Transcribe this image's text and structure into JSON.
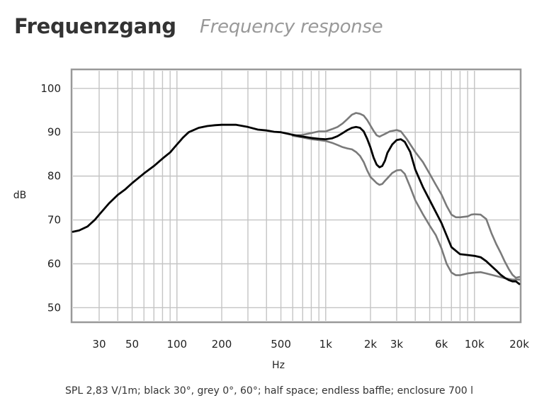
{
  "title": "Frequenzgang",
  "subtitle": "Frequency response",
  "caption": "SPL 2,83 V/1m; black 30°, grey 0°, 60°; half space; endless baffle; enclosure 700 l",
  "colors": {
    "black_curve": "#000000",
    "grey_curve": "#7a7a7a",
    "grid": "#c4c4c4",
    "frame": "#999999"
  },
  "chart_data": {
    "type": "line",
    "title": "Frequenzgang",
    "subtitle": "Frequency response",
    "xlabel": "Hz",
    "ylabel": "dB",
    "xscale": "log",
    "xlim": [
      20,
      20000
    ],
    "ylim": [
      47,
      104
    ],
    "grid": true,
    "ticks_x": [
      {
        "value": 30,
        "label": "30"
      },
      {
        "value": 50,
        "label": "50"
      },
      {
        "value": 100,
        "label": "100"
      },
      {
        "value": 200,
        "label": "200"
      },
      {
        "value": 500,
        "label": "500"
      },
      {
        "value": 1000,
        "label": "1k"
      },
      {
        "value": 2000,
        "label": "2k"
      },
      {
        "value": 3000,
        "label": "3k"
      },
      {
        "value": 6000,
        "label": "6k"
      },
      {
        "value": 10000,
        "label": "10k"
      },
      {
        "value": 20000,
        "label": "20k"
      }
    ],
    "ticks_y": [
      {
        "value": 50,
        "label": "50"
      },
      {
        "value": 60,
        "label": "60"
      },
      {
        "value": 70,
        "label": "70"
      },
      {
        "value": 80,
        "label": "80"
      },
      {
        "value": 90,
        "label": "90"
      },
      {
        "value": 100,
        "label": "100"
      }
    ],
    "series": [
      {
        "color": "#000000",
        "points": [
          [
            20,
            67.3
          ],
          [
            22,
            67.6
          ],
          [
            25,
            68.5
          ],
          [
            28,
            70
          ],
          [
            30,
            71.2
          ],
          [
            35,
            73.8
          ],
          [
            40,
            75.7
          ],
          [
            45,
            77
          ],
          [
            50,
            78.4
          ],
          [
            60,
            80.6
          ],
          [
            70,
            82.3
          ],
          [
            80,
            84
          ],
          [
            90,
            85.4
          ],
          [
            100,
            87.2
          ],
          [
            110,
            88.8
          ],
          [
            120,
            90
          ],
          [
            140,
            91
          ],
          [
            160,
            91.4
          ],
          [
            180,
            91.6
          ],
          [
            200,
            91.7
          ],
          [
            250,
            91.7
          ],
          [
            300,
            91.2
          ],
          [
            350,
            90.6
          ],
          [
            400,
            90.4
          ],
          [
            450,
            90.1
          ],
          [
            500,
            90
          ],
          [
            600,
            89.4
          ],
          [
            700,
            89
          ],
          [
            800,
            88.7
          ],
          [
            900,
            88.5
          ],
          [
            1000,
            88.4
          ],
          [
            1100,
            88.6
          ],
          [
            1200,
            89.1
          ],
          [
            1300,
            89.8
          ],
          [
            1400,
            90.5
          ],
          [
            1500,
            91
          ],
          [
            1600,
            91.2
          ],
          [
            1700,
            91
          ],
          [
            1800,
            90.2
          ],
          [
            1900,
            88.5
          ],
          [
            2000,
            86.5
          ],
          [
            2100,
            84.2
          ],
          [
            2200,
            82.6
          ],
          [
            2300,
            82
          ],
          [
            2400,
            82.3
          ],
          [
            2500,
            83.5
          ],
          [
            2600,
            85.3
          ],
          [
            2800,
            87.2
          ],
          [
            3000,
            88.2
          ],
          [
            3200,
            88.4
          ],
          [
            3400,
            87.8
          ],
          [
            3700,
            85.5
          ],
          [
            4000,
            81.5
          ],
          [
            4500,
            77.5
          ],
          [
            5000,
            74.5
          ],
          [
            6000,
            69.3
          ],
          [
            7000,
            63.8
          ],
          [
            8000,
            62.2
          ],
          [
            9000,
            62
          ],
          [
            10000,
            61.8
          ],
          [
            11000,
            61.5
          ],
          [
            12000,
            60.6
          ],
          [
            13000,
            59.5
          ],
          [
            14000,
            58.5
          ],
          [
            15000,
            57.5
          ],
          [
            16000,
            56.8
          ],
          [
            17000,
            56.3
          ],
          [
            18000,
            56
          ],
          [
            19000,
            56
          ],
          [
            20000,
            55.4
          ]
        ]
      },
      {
        "color": "#7a7a7a",
        "points": [
          [
            600,
            89.2
          ],
          [
            700,
            89.4
          ],
          [
            800,
            89.8
          ],
          [
            900,
            90.2
          ],
          [
            1000,
            90.2
          ],
          [
            1100,
            90.7
          ],
          [
            1200,
            91.2
          ],
          [
            1300,
            92
          ],
          [
            1400,
            93
          ],
          [
            1500,
            94
          ],
          [
            1600,
            94.4
          ],
          [
            1700,
            94.2
          ],
          [
            1800,
            93.8
          ],
          [
            1900,
            92.8
          ],
          [
            2000,
            91.5
          ],
          [
            2100,
            90.3
          ],
          [
            2200,
            89.3
          ],
          [
            2300,
            89
          ],
          [
            2400,
            89.3
          ],
          [
            2500,
            89.6
          ],
          [
            2700,
            90.2
          ],
          [
            3000,
            90.5
          ],
          [
            3200,
            90.2
          ],
          [
            3500,
            88.5
          ],
          [
            4000,
            85.5
          ],
          [
            4500,
            83.2
          ],
          [
            5000,
            80.5
          ],
          [
            5500,
            78
          ],
          [
            6000,
            75.8
          ],
          [
            6500,
            73.2
          ],
          [
            7000,
            71.2
          ],
          [
            7500,
            70.6
          ],
          [
            8000,
            70.6
          ],
          [
            9000,
            70.8
          ],
          [
            9500,
            71.2
          ],
          [
            10000,
            71.3
          ],
          [
            11000,
            71.2
          ],
          [
            12000,
            70.2
          ],
          [
            13000,
            67
          ],
          [
            14000,
            64.5
          ],
          [
            15000,
            62.5
          ],
          [
            16000,
            60.5
          ],
          [
            17000,
            58.8
          ],
          [
            18000,
            57.5
          ],
          [
            19000,
            56.8
          ],
          [
            20000,
            57
          ]
        ]
      },
      {
        "color": "#7a7a7a",
        "points": [
          [
            600,
            89.2
          ],
          [
            700,
            88.8
          ],
          [
            800,
            88.4
          ],
          [
            900,
            88.2
          ],
          [
            1000,
            88
          ],
          [
            1100,
            87.6
          ],
          [
            1200,
            87.1
          ],
          [
            1300,
            86.6
          ],
          [
            1400,
            86.3
          ],
          [
            1500,
            86.1
          ],
          [
            1600,
            85.5
          ],
          [
            1700,
            84.6
          ],
          [
            1800,
            83.2
          ],
          [
            1900,
            81.3
          ],
          [
            2000,
            79.8
          ],
          [
            2100,
            79.1
          ],
          [
            2200,
            78.4
          ],
          [
            2300,
            78
          ],
          [
            2400,
            78.2
          ],
          [
            2500,
            78.9
          ],
          [
            2600,
            79.5
          ],
          [
            2800,
            80.7
          ],
          [
            3000,
            81.3
          ],
          [
            3200,
            81.4
          ],
          [
            3400,
            80.5
          ],
          [
            3700,
            77.5
          ],
          [
            4000,
            74.5
          ],
          [
            4500,
            71.3
          ],
          [
            5000,
            68.7
          ],
          [
            5500,
            66.5
          ],
          [
            6000,
            63.5
          ],
          [
            6500,
            60
          ],
          [
            7000,
            58
          ],
          [
            7500,
            57.4
          ],
          [
            8000,
            57.4
          ],
          [
            9000,
            57.8
          ],
          [
            10000,
            58
          ],
          [
            11000,
            58.1
          ],
          [
            12000,
            57.8
          ],
          [
            14000,
            57.2
          ],
          [
            16000,
            56.7
          ],
          [
            18000,
            56.4
          ],
          [
            20000,
            56.4
          ]
        ]
      }
    ]
  }
}
